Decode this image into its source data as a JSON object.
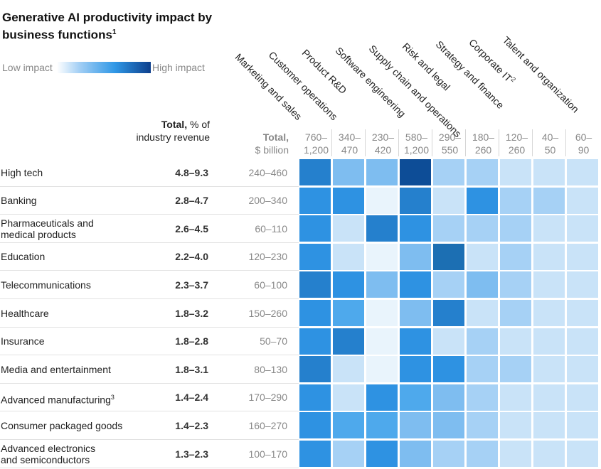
{
  "title": "Generative AI productivity impact by business functions",
  "title_footnote": "1",
  "legend": {
    "low": "Low impact",
    "high": "High impact"
  },
  "header": {
    "total_pct_bold": "Total,",
    "total_pct_rest": "% of industry revenue",
    "total_bn_bold": "Total,",
    "total_bn_rest": "$ billion"
  },
  "chart_data": {
    "type": "heatmap",
    "title": "Generative AI productivity impact by business functions",
    "legend": {
      "low": "Low impact",
      "high": "High impact",
      "scale": "1 = lowest impact, 9 = highest impact (estimated from cell shade)"
    },
    "columns": [
      {
        "name": "Marketing and sales",
        "range": [
          "760–",
          "1,200"
        ]
      },
      {
        "name": "Customer operations",
        "range": [
          "340–",
          "470"
        ]
      },
      {
        "name": "Product R&D",
        "range": [
          "230–",
          "420"
        ]
      },
      {
        "name": "Software engineering",
        "range": [
          "580–",
          "1,200"
        ]
      },
      {
        "name": "Supply chain and operations",
        "range": [
          "290–",
          "550"
        ]
      },
      {
        "name": "Risk and legal",
        "range": [
          "180–",
          "260"
        ]
      },
      {
        "name": "Strategy and finance",
        "range": [
          "120–",
          "260"
        ]
      },
      {
        "name": "Corporate IT",
        "sup": "2",
        "range": [
          "40–",
          "50"
        ]
      },
      {
        "name": "Talent and organization",
        "range": [
          "60–",
          "90"
        ]
      }
    ],
    "rows": [
      {
        "name": [
          "High tech"
        ],
        "total_pct": "4.8–9.3",
        "total_bn": "240–460",
        "values": [
          7,
          4,
          4,
          9,
          3,
          3,
          2,
          2,
          2
        ]
      },
      {
        "name": [
          "Banking"
        ],
        "total_pct": "2.8–4.7",
        "total_bn": "200–340",
        "values": [
          6,
          6,
          1,
          7,
          2,
          6,
          3,
          3,
          2
        ]
      },
      {
        "name": [
          "Pharmaceuticals and",
          "medical products"
        ],
        "total_pct": "2.6–4.5",
        "total_bn": "60–110",
        "values": [
          6,
          2,
          7,
          6,
          3,
          3,
          3,
          2,
          2
        ]
      },
      {
        "name": [
          "Education"
        ],
        "total_pct": "2.2–4.0",
        "total_bn": "120–230",
        "values": [
          6,
          2,
          1,
          4,
          8,
          2,
          3,
          2,
          2
        ]
      },
      {
        "name": [
          "Telecommunications"
        ],
        "total_pct": "2.3–3.7",
        "total_bn": "60–100",
        "values": [
          7,
          6,
          4,
          6,
          3,
          4,
          3,
          2,
          2
        ]
      },
      {
        "name": [
          "Healthcare"
        ],
        "total_pct": "1.8–3.2",
        "total_bn": "150–260",
        "values": [
          6,
          5,
          1,
          4,
          7,
          2,
          3,
          2,
          2
        ]
      },
      {
        "name": [
          "Insurance"
        ],
        "total_pct": "1.8–2.8",
        "total_bn": "50–70",
        "values": [
          6,
          7,
          1,
          6,
          2,
          3,
          2,
          2,
          2
        ]
      },
      {
        "name": [
          "Media and entertainment"
        ],
        "total_pct": "1.8–3.1",
        "total_bn": "80–130",
        "values": [
          7,
          2,
          1,
          6,
          6,
          3,
          3,
          2,
          2
        ]
      },
      {
        "name": [
          "Advanced manufacturing"
        ],
        "sup": "3",
        "total_pct": "1.4–2.4",
        "total_bn": "170–290",
        "values": [
          6,
          2,
          6,
          5,
          4,
          3,
          2,
          2,
          2
        ]
      },
      {
        "name": [
          "Consumer packaged goods"
        ],
        "total_pct": "1.4–2.3",
        "total_bn": "160–270",
        "values": [
          6,
          5,
          5,
          4,
          4,
          3,
          2,
          2,
          2
        ]
      },
      {
        "name": [
          "Advanced electronics",
          "and semiconductors"
        ],
        "total_pct": "1.3–2.3",
        "total_bn": "100–170",
        "values": [
          6,
          3,
          6,
          4,
          3,
          3,
          2,
          2,
          2
        ]
      }
    ],
    "colors": {
      "1": "#e9f4fc",
      "2": "#c9e3f8",
      "3": "#a6d1f5",
      "4": "#7ebdf0",
      "5": "#4ea9ec",
      "6": "#2e92e2",
      "7": "#2580cd",
      "8": "#1c6fb3",
      "9": "#0d4d97"
    }
  }
}
